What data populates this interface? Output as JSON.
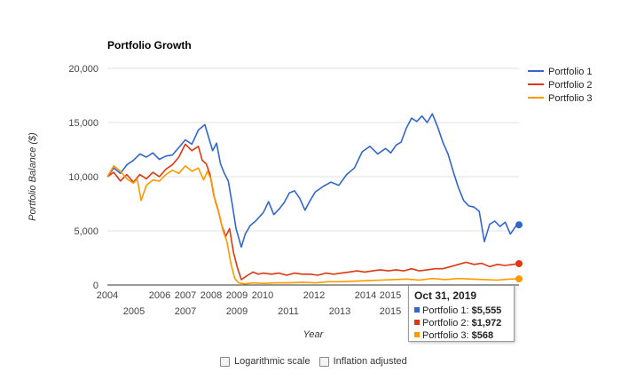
{
  "chart_data": {
    "type": "line",
    "title": "Portfolio Growth",
    "xlabel": "Year",
    "ylabel": "Portfolio Balance ($)",
    "xlim": [
      2004.0,
      2019.83
    ],
    "ylim": [
      0,
      20000
    ],
    "yticks": [
      "0",
      "5,000",
      "10,000",
      "15,000",
      "20,000"
    ],
    "x_tick_labels_row1": [
      "2004",
      "2006",
      "2007",
      "2008",
      "2009",
      "2010",
      "2012",
      "2014",
      "2015"
    ],
    "x_tick_labels_row2": [
      "2005",
      "2007",
      "2009",
      "2011",
      "2013",
      "2015"
    ],
    "legend_position": "right",
    "series": [
      {
        "name": "Portfolio 1",
        "color": "#3366cc",
        "points": [
          [
            2004.0,
            10000
          ],
          [
            2004.25,
            10800
          ],
          [
            2004.5,
            10300
          ],
          [
            2004.75,
            11100
          ],
          [
            2005.0,
            11500
          ],
          [
            2005.25,
            12100
          ],
          [
            2005.5,
            11800
          ],
          [
            2005.75,
            12200
          ],
          [
            2006.0,
            11600
          ],
          [
            2006.25,
            11900
          ],
          [
            2006.5,
            12000
          ],
          [
            2006.75,
            12700
          ],
          [
            2007.0,
            13400
          ],
          [
            2007.25,
            13000
          ],
          [
            2007.5,
            14300
          ],
          [
            2007.75,
            14800
          ],
          [
            2007.9,
            13600
          ],
          [
            2008.05,
            12400
          ],
          [
            2008.2,
            13100
          ],
          [
            2008.35,
            11200
          ],
          [
            2008.5,
            10300
          ],
          [
            2008.65,
            9600
          ],
          [
            2008.8,
            7500
          ],
          [
            2008.95,
            5200
          ],
          [
            2009.15,
            3500
          ],
          [
            2009.3,
            4700
          ],
          [
            2009.5,
            5500
          ],
          [
            2009.7,
            5900
          ],
          [
            2010.0,
            6700
          ],
          [
            2010.2,
            7700
          ],
          [
            2010.4,
            6500
          ],
          [
            2010.6,
            7000
          ],
          [
            2010.8,
            7600
          ],
          [
            2011.0,
            8500
          ],
          [
            2011.2,
            8700
          ],
          [
            2011.4,
            8000
          ],
          [
            2011.6,
            6900
          ],
          [
            2011.8,
            7800
          ],
          [
            2012.0,
            8600
          ],
          [
            2012.3,
            9100
          ],
          [
            2012.6,
            9500
          ],
          [
            2012.9,
            9200
          ],
          [
            2013.2,
            10200
          ],
          [
            2013.5,
            10800
          ],
          [
            2013.8,
            12300
          ],
          [
            2014.1,
            12800
          ],
          [
            2014.4,
            12100
          ],
          [
            2014.7,
            12600
          ],
          [
            2014.9,
            12200
          ],
          [
            2015.1,
            12900
          ],
          [
            2015.3,
            13200
          ],
          [
            2015.5,
            14500
          ],
          [
            2015.7,
            15400
          ],
          [
            2015.9,
            15100
          ],
          [
            2016.1,
            15600
          ],
          [
            2016.3,
            15000
          ],
          [
            2016.5,
            15800
          ],
          [
            2016.7,
            14600
          ],
          [
            2016.9,
            13200
          ],
          [
            2017.1,
            12100
          ],
          [
            2017.3,
            10500
          ],
          [
            2017.5,
            9000
          ],
          [
            2017.7,
            7800
          ],
          [
            2017.9,
            7300
          ],
          [
            2018.1,
            7200
          ],
          [
            2018.3,
            6800
          ],
          [
            2018.5,
            4000
          ],
          [
            2018.7,
            5600
          ],
          [
            2018.9,
            5900
          ],
          [
            2019.1,
            5400
          ],
          [
            2019.3,
            5800
          ],
          [
            2019.5,
            4700
          ],
          [
            2019.7,
            5400
          ],
          [
            2019.83,
            5555
          ]
        ]
      },
      {
        "name": "Portfolio 2",
        "color": "#dc3912",
        "points": [
          [
            2004.0,
            10000
          ],
          [
            2004.25,
            10400
          ],
          [
            2004.5,
            9600
          ],
          [
            2004.75,
            10200
          ],
          [
            2005.0,
            9500
          ],
          [
            2005.25,
            10200
          ],
          [
            2005.5,
            9800
          ],
          [
            2005.75,
            10400
          ],
          [
            2006.0,
            10000
          ],
          [
            2006.25,
            10700
          ],
          [
            2006.5,
            11100
          ],
          [
            2006.75,
            11800
          ],
          [
            2007.0,
            13000
          ],
          [
            2007.25,
            12400
          ],
          [
            2007.5,
            12800
          ],
          [
            2007.65,
            11500
          ],
          [
            2007.8,
            11200
          ],
          [
            2007.95,
            10200
          ],
          [
            2008.1,
            8200
          ],
          [
            2008.25,
            7000
          ],
          [
            2008.4,
            5500
          ],
          [
            2008.55,
            4500
          ],
          [
            2008.7,
            5200
          ],
          [
            2008.85,
            3000
          ],
          [
            2009.0,
            1600
          ],
          [
            2009.15,
            500
          ],
          [
            2009.4,
            900
          ],
          [
            2009.6,
            1200
          ],
          [
            2009.8,
            1000
          ],
          [
            2010.0,
            1100
          ],
          [
            2010.3,
            1000
          ],
          [
            2010.6,
            1100
          ],
          [
            2010.9,
            900
          ],
          [
            2011.2,
            1100
          ],
          [
            2011.5,
            1000
          ],
          [
            2011.8,
            1000
          ],
          [
            2012.1,
            900
          ],
          [
            2012.4,
            1100
          ],
          [
            2012.7,
            1000
          ],
          [
            2013.0,
            1100
          ],
          [
            2013.3,
            1200
          ],
          [
            2013.6,
            1300
          ],
          [
            2013.9,
            1200
          ],
          [
            2014.2,
            1300
          ],
          [
            2014.5,
            1400
          ],
          [
            2014.8,
            1300
          ],
          [
            2015.1,
            1400
          ],
          [
            2015.4,
            1300
          ],
          [
            2015.7,
            1500
          ],
          [
            2016.0,
            1300
          ],
          [
            2016.3,
            1400
          ],
          [
            2016.6,
            1500
          ],
          [
            2016.9,
            1500
          ],
          [
            2017.2,
            1700
          ],
          [
            2017.5,
            1900
          ],
          [
            2017.8,
            2100
          ],
          [
            2018.1,
            1900
          ],
          [
            2018.4,
            2000
          ],
          [
            2018.7,
            1700
          ],
          [
            2019.0,
            1900
          ],
          [
            2019.3,
            1800
          ],
          [
            2019.6,
            1900
          ],
          [
            2019.83,
            1972
          ]
        ]
      },
      {
        "name": "Portfolio 3",
        "color": "#ff9900",
        "points": [
          [
            2004.0,
            10000
          ],
          [
            2004.25,
            11000
          ],
          [
            2004.5,
            10500
          ],
          [
            2004.75,
            9800
          ],
          [
            2005.0,
            9400
          ],
          [
            2005.15,
            9800
          ],
          [
            2005.3,
            7800
          ],
          [
            2005.5,
            9200
          ],
          [
            2005.75,
            9700
          ],
          [
            2006.0,
            9600
          ],
          [
            2006.25,
            10200
          ],
          [
            2006.5,
            10600
          ],
          [
            2006.75,
            10300
          ],
          [
            2007.0,
            11000
          ],
          [
            2007.25,
            10500
          ],
          [
            2007.5,
            10800
          ],
          [
            2007.7,
            9700
          ],
          [
            2007.85,
            10500
          ],
          [
            2008.0,
            9700
          ],
          [
            2008.15,
            7700
          ],
          [
            2008.3,
            6600
          ],
          [
            2008.45,
            5000
          ],
          [
            2008.6,
            4000
          ],
          [
            2008.75,
            2000
          ],
          [
            2008.9,
            600
          ],
          [
            2009.05,
            200
          ],
          [
            2009.3,
            100
          ],
          [
            2009.6,
            200
          ],
          [
            2010.0,
            150
          ],
          [
            2010.5,
            200
          ],
          [
            2011.0,
            200
          ],
          [
            2011.5,
            250
          ],
          [
            2012.0,
            200
          ],
          [
            2012.5,
            300
          ],
          [
            2013.0,
            300
          ],
          [
            2013.5,
            350
          ],
          [
            2014.0,
            400
          ],
          [
            2014.5,
            450
          ],
          [
            2015.0,
            500
          ],
          [
            2015.5,
            550
          ],
          [
            2016.0,
            450
          ],
          [
            2016.5,
            600
          ],
          [
            2017.0,
            500
          ],
          [
            2017.5,
            600
          ],
          [
            2018.0,
            550
          ],
          [
            2018.5,
            500
          ],
          [
            2019.0,
            450
          ],
          [
            2019.5,
            550
          ],
          [
            2019.83,
            568
          ]
        ]
      }
    ],
    "tooltip": {
      "title": "Oct 31, 2019",
      "rows": [
        {
          "label": "Portfolio 1:",
          "value": "$5,555",
          "color": "#3366cc"
        },
        {
          "label": "Portfolio 2:",
          "value": "$1,972",
          "color": "#dc3912"
        },
        {
          "label": "Portfolio 3:",
          "value": "$568",
          "color": "#ff9900"
        }
      ]
    }
  },
  "controls": {
    "log_scale_label": "Logarithmic scale",
    "inflation_label": "Inflation adjusted"
  }
}
